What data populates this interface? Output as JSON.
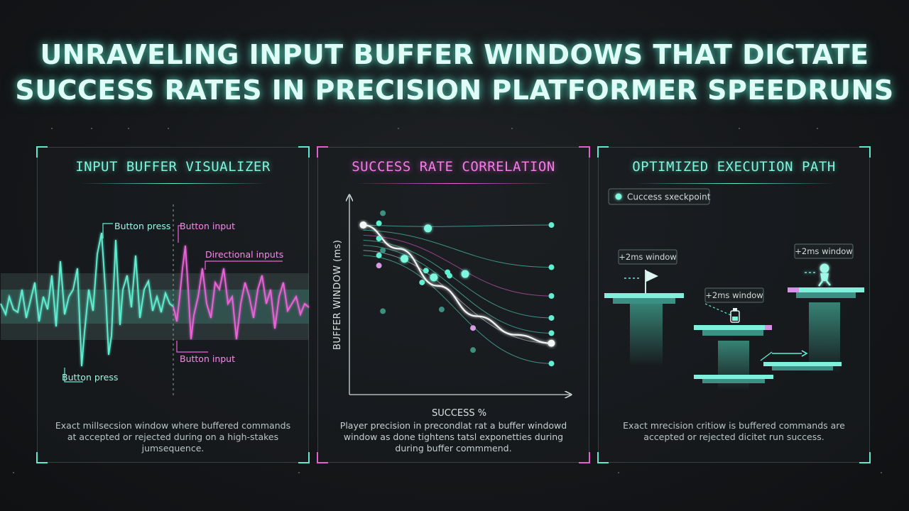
{
  "title": {
    "line1": "UNRAVELING INPUT BUFFER WINDOWS THAT DICTATE",
    "line2": "SUCCESS RATES IN PRECISION PLATFORMER SPEEDRUNS"
  },
  "panels": {
    "visualizer": {
      "title": "INPUT BUFFER VISUALIZER",
      "labels": {
        "button_press_top": "Button press",
        "button_input_top": "Button input",
        "directional_inputs": "Directional inputs",
        "button_input_bottom": "Button input",
        "button_press_bottom": "Button press"
      },
      "caption": {
        "line1": "Exact millsecsion window where buffered commands",
        "line2": "at accepted or rejected during on a high-stakes",
        "line3": "jumsequence."
      }
    },
    "correlation": {
      "title": "SUCCESS RATE CORRELATION",
      "caption": {
        "line1": "Player precision in precondlat rat a buffer windowd",
        "line2": "window as done tightens tatsl exponetties during",
        "line3": "during buffer commmend."
      }
    },
    "execution": {
      "title": "OPTIMIZED EXECUTION PATH",
      "legend": "Cuccess sxeckpoint",
      "windows": [
        "+2ms window",
        "+2ms window",
        "+2ms window"
      ],
      "caption": {
        "line1": "Exact mrecision critiow is buffered commands are",
        "line2": "accepted or rejected dicitet run success."
      }
    }
  },
  "chart_data": {
    "type": "scatter",
    "title": "SUCCESS RATE CORRELATION",
    "xlabel": "SUCCESS %",
    "ylabel": "BUFFER WINDOW (ms)",
    "ticks_shown": false,
    "points": [
      {
        "x": 2,
        "y": 92,
        "style": "white"
      },
      {
        "x": 10,
        "y": 93,
        "style": "teal"
      },
      {
        "x": 10,
        "y": 84,
        "style": "teal"
      },
      {
        "x": 10,
        "y": 74,
        "style": "teal"
      },
      {
        "x": 10,
        "y": 68,
        "style": "pink"
      },
      {
        "x": 12,
        "y": 99,
        "style": "dim"
      },
      {
        "x": 12,
        "y": 77,
        "style": "dim"
      },
      {
        "x": 12,
        "y": 41,
        "style": "dim"
      },
      {
        "x": 23,
        "y": 72,
        "style": "bright"
      },
      {
        "x": 35,
        "y": 90,
        "style": "bright"
      },
      {
        "x": 34,
        "y": 65,
        "style": "teal"
      },
      {
        "x": 32,
        "y": 58,
        "style": "teal"
      },
      {
        "x": 38,
        "y": 61,
        "style": "bright"
      },
      {
        "x": 45,
        "y": 64,
        "style": "teal"
      },
      {
        "x": 46,
        "y": 62,
        "style": "teal"
      },
      {
        "x": 42,
        "y": 42,
        "style": "dim"
      },
      {
        "x": 54,
        "y": 63,
        "style": "bright"
      },
      {
        "x": 58,
        "y": 31,
        "style": "pink"
      },
      {
        "x": 58,
        "y": 18,
        "style": "dim"
      },
      {
        "x": 98,
        "y": 92,
        "style": "teal"
      },
      {
        "x": 98,
        "y": 67,
        "style": "teal"
      },
      {
        "x": 98,
        "y": 50,
        "style": "teal"
      },
      {
        "x": 98,
        "y": 37,
        "style": "teal"
      },
      {
        "x": 98,
        "y": 28,
        "style": "teal"
      },
      {
        "x": 98,
        "y": 22,
        "style": "white"
      },
      {
        "x": 98,
        "y": 10,
        "style": "teal"
      }
    ],
    "trend": [
      {
        "x": 2,
        "y": 92
      },
      {
        "x": 20,
        "y": 78
      },
      {
        "x": 40,
        "y": 56
      },
      {
        "x": 60,
        "y": 38
      },
      {
        "x": 80,
        "y": 27
      },
      {
        "x": 98,
        "y": 22
      }
    ],
    "xlim": [
      0,
      100
    ],
    "ylim": [
      0,
      100
    ]
  },
  "colors": {
    "teal": "#5ff0d2",
    "pink": "#ee62dc",
    "background": "#15171a"
  }
}
